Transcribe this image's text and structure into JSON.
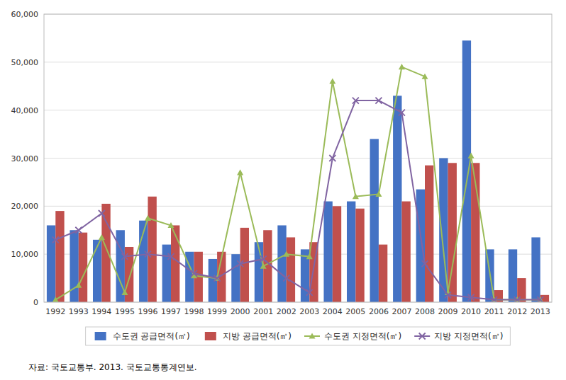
{
  "chart_data": {
    "type": "bar",
    "categories": [
      "1992",
      "1993",
      "1994",
      "1995",
      "1996",
      "1997",
      "1998",
      "1999",
      "2000",
      "2001",
      "2002",
      "2003",
      "2004",
      "2005",
      "2006",
      "2007",
      "2008",
      "2009",
      "2010",
      "2011",
      "2012",
      "2013"
    ],
    "series": [
      {
        "name": "수도권 공급면적(㎡)",
        "type": "bar",
        "color": "#4472C4",
        "values": [
          16000,
          15000,
          13000,
          15000,
          17000,
          12000,
          10500,
          9000,
          10000,
          12500,
          16000,
          11000,
          21000,
          21000,
          34000,
          43000,
          23500,
          30000,
          54500,
          11000,
          11000,
          13500
        ]
      },
      {
        "name": "지방 공급면적(㎡)",
        "type": "bar",
        "color": "#C0504D",
        "values": [
          19000,
          14500,
          20500,
          11500,
          22000,
          16000,
          10500,
          10500,
          15500,
          15000,
          13500,
          12500,
          20000,
          19500,
          12000,
          21000,
          28500,
          29000,
          29000,
          2500,
          5000,
          1500
        ]
      },
      {
        "name": "수도권 지정면적(㎡)",
        "type": "line",
        "color": "#9BBB59",
        "marker": "triangle",
        "values": [
          500,
          3500,
          13500,
          2000,
          17500,
          16000,
          5500,
          5000,
          27000,
          7500,
          10000,
          9500,
          46000,
          22000,
          22500,
          49000,
          47000,
          2000,
          30500,
          500,
          500,
          500
        ]
      },
      {
        "name": "지방 지정면적(㎡)",
        "type": "line",
        "color": "#8064A2",
        "marker": "x",
        "values": [
          13000,
          15000,
          18500,
          9500,
          10000,
          9500,
          6000,
          5000,
          8000,
          9000,
          5000,
          2000,
          30000,
          42000,
          42000,
          39500,
          8000,
          1500,
          1000,
          500,
          500,
          500
        ]
      }
    ],
    "ylim": [
      0,
      60000
    ],
    "yticks": [
      0,
      {
        "value": 10000,
        "label": "10,000"
      },
      {
        "value": 20000,
        "label": "20,000"
      },
      {
        "value": 30000,
        "label": "30,000"
      },
      {
        "value": 40000,
        "label": "40,000"
      },
      {
        "value": 50000,
        "label": "50,000"
      },
      {
        "value": 60000,
        "label": "60,000"
      }
    ],
    "grid": true,
    "legend": "bottom",
    "annotations": [
      "자료:  국토교통부.  2013.  국토교통통계연보."
    ]
  }
}
